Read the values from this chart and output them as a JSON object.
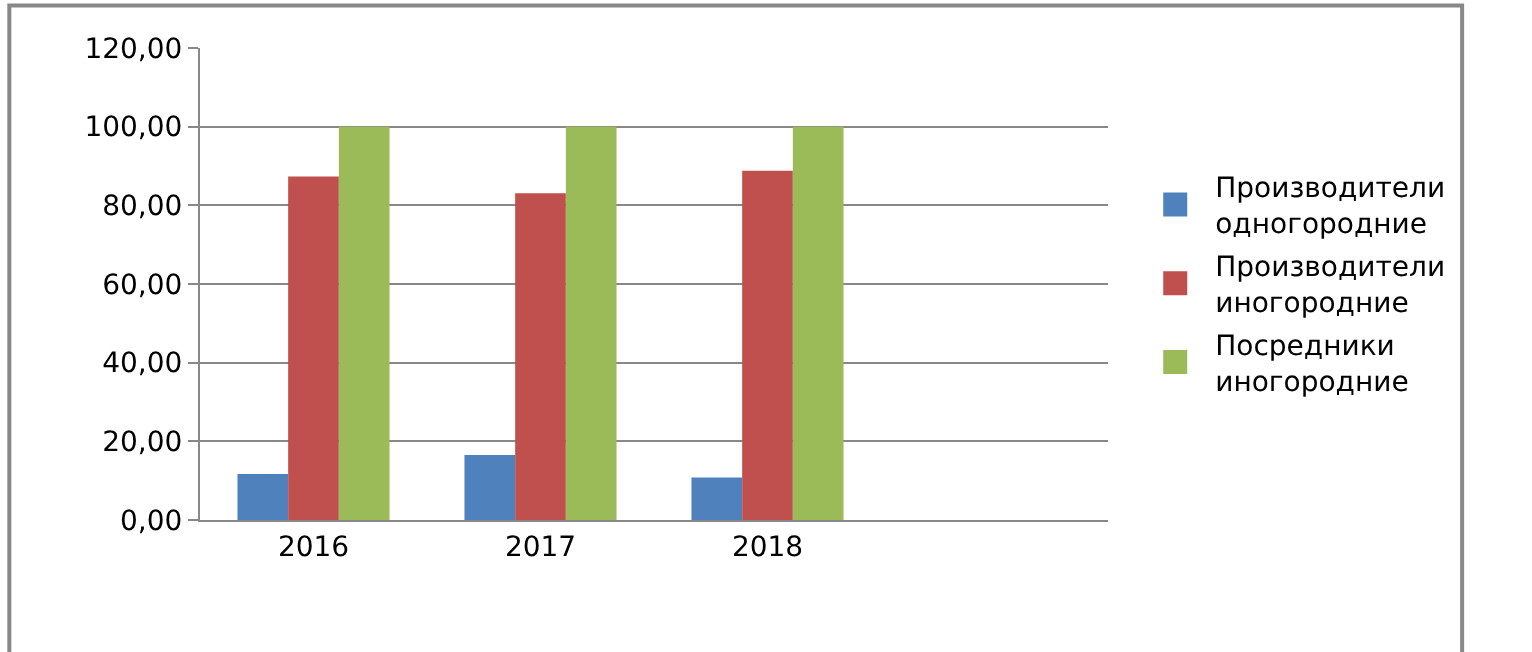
{
  "chart_data": {
    "type": "bar",
    "categories": [
      "2016",
      "2017",
      "2018",
      null
    ],
    "series": [
      {
        "name": "Производители\nодногородние",
        "color": "#4f81bd",
        "values": [
          11.7,
          16.5,
          10.8,
          null
        ]
      },
      {
        "name": "Производители\nиногородние",
        "color": "#c0504d",
        "values": [
          87.3,
          83.1,
          88.8,
          null
        ]
      },
      {
        "name": "Посредники\nиногородние",
        "color": "#9bbb59",
        "values": [
          100,
          100,
          100,
          null
        ]
      }
    ],
    "ylim": [
      0,
      120
    ],
    "yticks": [
      {
        "value": 0,
        "label": "0,00"
      },
      {
        "value": 20,
        "label": "20,00"
      },
      {
        "value": 40,
        "label": "40,00"
      },
      {
        "value": 60,
        "label": "60,00"
      },
      {
        "value": 80,
        "label": "80,00"
      },
      {
        "value": 100,
        "label": "100,00"
      },
      {
        "value": 120,
        "label": "120,00"
      }
    ],
    "grid": "y",
    "legend": "right"
  }
}
